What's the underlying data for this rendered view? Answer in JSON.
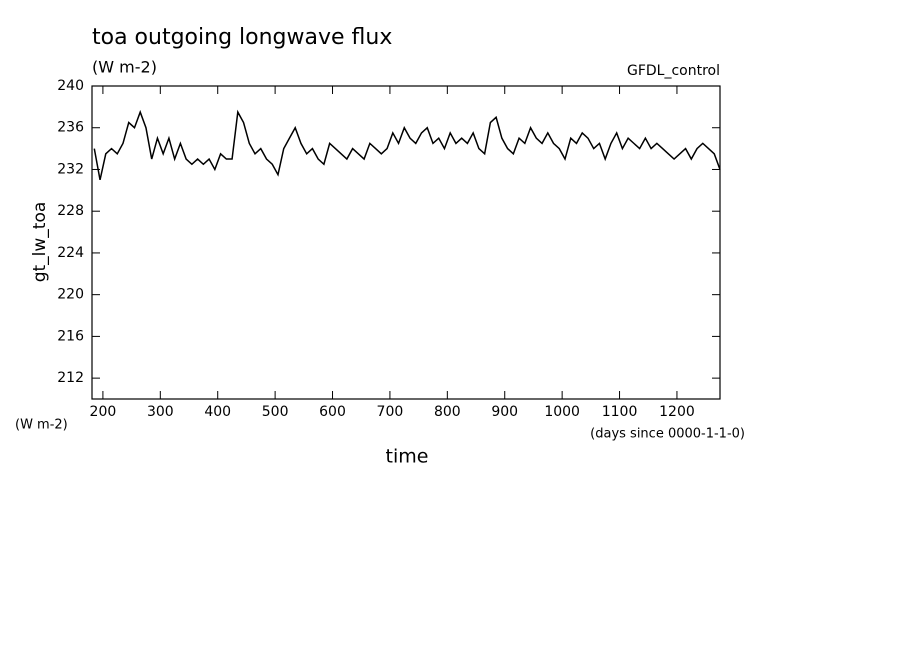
{
  "chart_data": {
    "type": "line",
    "title": "toa outgoing longwave flux",
    "subtitle": "(W m-2)",
    "dataset_label": "GFDL_control",
    "y_label": "gt_lw_toa",
    "y_units": "(W m-2)",
    "x_label": "time",
    "x_units": "(days since 0000-1-1-0)",
    "color": "#000000",
    "xlim": [
      181,
      1275
    ],
    "ylim": [
      210,
      240
    ],
    "xticks": [
      200,
      300,
      400,
      500,
      600,
      700,
      800,
      900,
      1000,
      1100,
      1200
    ],
    "yticks": [
      212,
      216,
      220,
      224,
      228,
      232,
      236,
      240
    ],
    "x": [
      185,
      195,
      205,
      215,
      225,
      235,
      245,
      255,
      265,
      275,
      285,
      295,
      305,
      315,
      325,
      335,
      345,
      355,
      365,
      375,
      385,
      395,
      405,
      415,
      425,
      435,
      445,
      455,
      465,
      475,
      485,
      495,
      505,
      515,
      525,
      535,
      545,
      555,
      565,
      575,
      585,
      595,
      605,
      615,
      625,
      635,
      645,
      655,
      665,
      675,
      685,
      695,
      705,
      715,
      725,
      735,
      745,
      755,
      765,
      775,
      785,
      795,
      805,
      815,
      825,
      835,
      845,
      855,
      865,
      875,
      885,
      895,
      905,
      915,
      925,
      935,
      945,
      955,
      965,
      975,
      985,
      995,
      1005,
      1015,
      1025,
      1035,
      1045,
      1055,
      1065,
      1075,
      1085,
      1095,
      1105,
      1115,
      1125,
      1135,
      1145,
      1155,
      1165,
      1175,
      1185,
      1195,
      1205,
      1215,
      1225,
      1235,
      1245,
      1255,
      1265,
      1275
    ],
    "values": [
      234,
      231,
      233.5,
      234,
      233.5,
      234.5,
      236.5,
      236,
      237.5,
      236,
      233,
      235,
      233.5,
      235,
      233,
      234.5,
      233,
      232.5,
      233,
      232.5,
      233,
      232,
      233.5,
      233,
      233,
      237.5,
      236.5,
      234.5,
      233.5,
      234,
      233,
      232.5,
      231.5,
      234,
      235,
      236,
      234.5,
      233.5,
      234,
      233,
      232.5,
      234.5,
      234,
      233.5,
      233,
      234,
      233.5,
      233,
      234.5,
      234,
      233.5,
      234,
      235.5,
      234.5,
      236,
      235,
      234.5,
      235.5,
      236,
      234.5,
      235,
      234,
      235.5,
      234.5,
      235,
      234.5,
      235.5,
      234,
      233.5,
      236.5,
      237,
      235,
      234,
      233.5,
      235,
      234.5,
      236,
      235,
      234.5,
      235.5,
      234.5,
      234,
      233,
      235,
      234.5,
      235.5,
      235,
      234,
      234.5,
      233,
      234.5,
      235.5,
      234,
      235,
      234.5,
      234,
      235,
      234,
      234.5,
      234,
      233.5,
      233,
      233.5,
      234,
      233,
      234,
      234.5,
      234,
      233.5,
      232
    ]
  }
}
